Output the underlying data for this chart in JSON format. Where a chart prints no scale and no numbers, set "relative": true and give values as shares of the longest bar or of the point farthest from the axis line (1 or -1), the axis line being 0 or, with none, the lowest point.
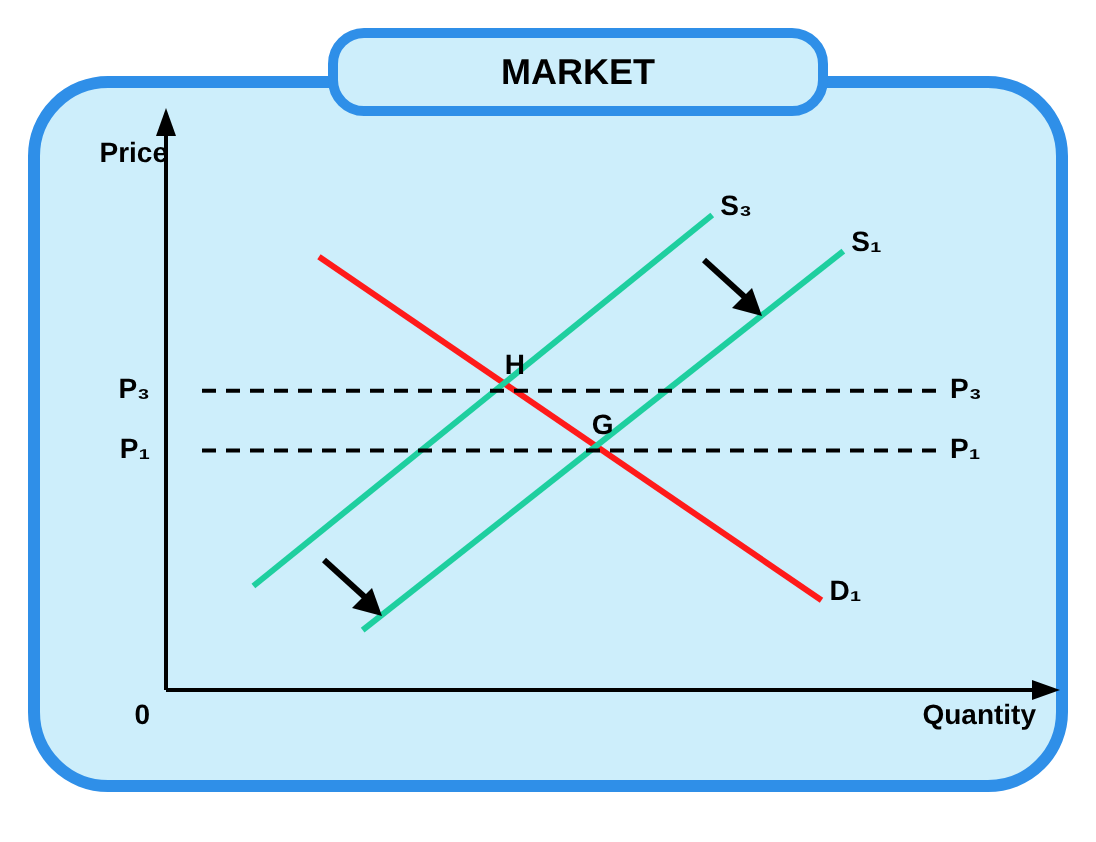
{
  "chart_data": {
    "type": "line",
    "title": "MARKET",
    "xlabel": "Quantity",
    "ylabel": "Price",
    "relative": true,
    "legend": false,
    "marker": "none",
    "line_style": "solid",
    "categories": [
      null,
      null,
      null,
      null,
      null,
      null,
      null,
      null,
      null,
      null,
      null,
      null,
      null,
      null,
      null,
      null,
      null,
      null,
      null,
      null,
      null,
      null,
      null,
      null,
      null,
      null,
      null,
      null,
      null,
      null,
      null,
      null,
      null,
      null,
      null,
      null,
      null,
      null,
      null,
      null,
      null
    ],
    "series": [
      {
        "name": "S₃",
        "color": "#1ecf9f",
        "values": [
          null,
          null,
          null,
          null,
          0.219,
          null,
          null,
          null,
          null,
          null,
          null,
          null,
          null,
          null,
          null,
          null,
          null,
          null,
          null,
          null,
          null,
          null,
          null,
          null,
          null,
          1,
          null,
          null,
          null,
          null,
          null,
          null,
          null,
          null,
          null,
          null,
          null,
          null,
          null,
          null,
          null
        ]
      },
      {
        "name": "S₁",
        "color": "#1ecf9f",
        "values": [
          null,
          null,
          null,
          null,
          null,
          null,
          null,
          null,
          null,
          0.126,
          null,
          null,
          null,
          null,
          null,
          null,
          null,
          null,
          null,
          null,
          null,
          null,
          null,
          null,
          null,
          null,
          null,
          null,
          null,
          null,
          null,
          0.924,
          null,
          null,
          null,
          null,
          null,
          null,
          null,
          null,
          null
        ]
      },
      {
        "name": "D₁",
        "color": "#ff1a1a",
        "values": [
          null,
          null,
          null,
          null,
          null,
          null,
          null,
          0.912,
          null,
          null,
          null,
          null,
          null,
          null,
          null,
          null,
          null,
          null,
          null,
          null,
          null,
          null,
          null,
          null,
          null,
          null,
          null,
          null,
          null,
          null,
          0.189,
          null,
          null,
          null,
          null,
          null,
          null,
          null,
          null,
          null,
          null
        ]
      }
    ],
    "ref_lines": [
      {
        "axis": "y",
        "value": 0.63,
        "label": "P₃",
        "color": "#000000",
        "line_style": "dashed"
      },
      {
        "axis": "y",
        "value": 0.504,
        "label": "P₁",
        "color": "#000000",
        "line_style": "dashed"
      }
    ],
    "annotations": [
      "H",
      "G",
      "0"
    ]
  }
}
